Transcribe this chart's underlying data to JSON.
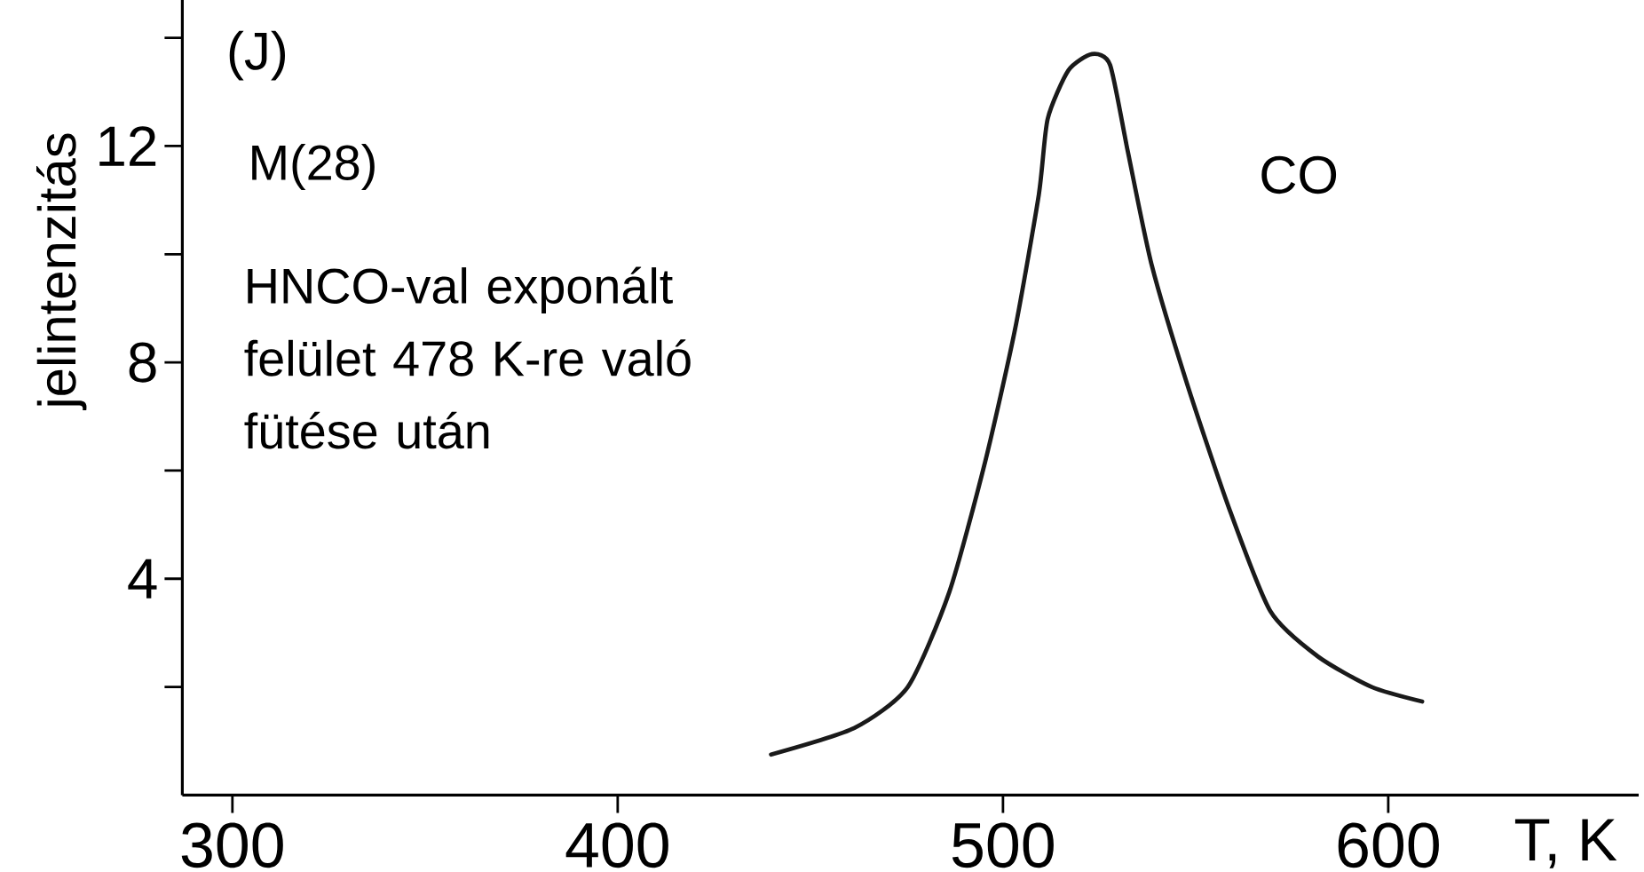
{
  "chart_data": {
    "type": "line",
    "ylabel": "jelintenzitás",
    "xlabel": "T, K",
    "annotations": [
      "(J)",
      "M(28)",
      "HNCO-val exponált felület 478 K-re való fütése után"
    ],
    "xlim": [
      287,
      665
    ],
    "ylim": [
      0,
      14.7
    ],
    "xticks": [
      300,
      400,
      500,
      600
    ],
    "yticks": [
      {
        "value": 2,
        "label": null
      },
      4,
      {
        "value": 6,
        "label": null
      },
      8,
      {
        "value": 10,
        "label": null
      },
      12,
      {
        "value": 14,
        "label": null
      }
    ],
    "grid": false,
    "marker": "none",
    "line_style": "solid",
    "series": [
      {
        "name": "CO",
        "color": "#1a1a1a",
        "x": [
          439.8,
          461.4,
          475.3,
          486.1,
          495.4,
          503.1,
          509.3,
          511.6,
          517,
          523.1,
          527.8,
          532.4,
          538.6,
          547.8,
          558.7,
          569.4,
          581.8,
          595.7,
          608.8
        ],
        "values": [
          0.75,
          1.24,
          2.0,
          3.76,
          6.17,
          8.6,
          11.1,
          12.5,
          13.4,
          13.7,
          13.5,
          11.9,
          9.8,
          7.6,
          5.3,
          3.4,
          2.56,
          2.0,
          1.73
        ]
      }
    ]
  }
}
